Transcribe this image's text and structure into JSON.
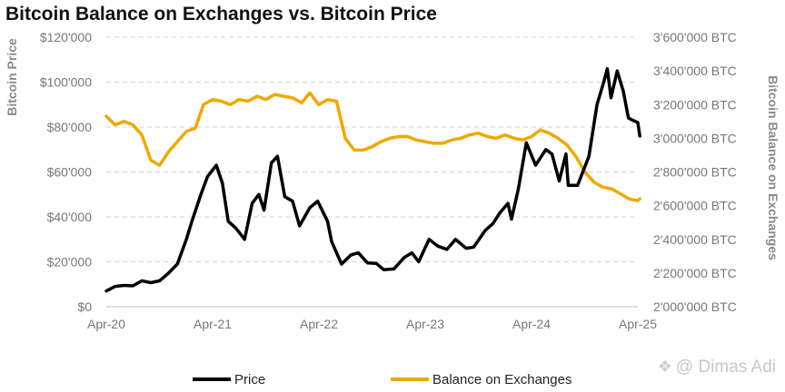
{
  "chart_data": {
    "type": "line",
    "title": "Bitcoin Balance on Exchanges vs. Bitcoin Price",
    "ylabel": "Bitcoin Price",
    "y2label": "Bitcoin Balance on Exchanges",
    "x_ticks": [
      "Apr-20",
      "Apr-21",
      "Apr-22",
      "Apr-23",
      "Apr-24",
      "Apr-25"
    ],
    "ylim": [
      0,
      120000
    ],
    "y_ticks": [
      "$0",
      "$20'000",
      "$40'000",
      "$60'000",
      "$80'000",
      "$100'000",
      "$120'000"
    ],
    "y2lim": [
      2000000,
      3600000
    ],
    "y2_ticks": [
      "2'000'000 BTC",
      "2'200'000 BTC",
      "2'400'000 BTC",
      "2'600'000 BTC",
      "2'800'000 BTC",
      "3'000'000 BTC",
      "3'200'000 BTC",
      "3'400'000 BTC",
      "3'600'000 BTC"
    ],
    "grid": true,
    "legend_position": "bottom",
    "series": [
      {
        "name": "Price",
        "axis": "left",
        "color": "#000000",
        "points": [
          [
            "2020-04-01",
            7000
          ],
          [
            "2020-05-01",
            9000
          ],
          [
            "2020-06-01",
            9500
          ],
          [
            "2020-07-01",
            9300
          ],
          [
            "2020-08-01",
            11500
          ],
          [
            "2020-09-01",
            10700
          ],
          [
            "2020-10-01",
            11500
          ],
          [
            "2020-11-01",
            15000
          ],
          [
            "2020-12-01",
            19000
          ],
          [
            "2021-01-01",
            30000
          ],
          [
            "2021-01-20",
            38000
          ],
          [
            "2021-02-20",
            50000
          ],
          [
            "2021-03-15",
            58000
          ],
          [
            "2021-04-14",
            63000
          ],
          [
            "2021-05-05",
            55000
          ],
          [
            "2021-05-25",
            38000
          ],
          [
            "2021-06-20",
            35000
          ],
          [
            "2021-07-20",
            30000
          ],
          [
            "2021-08-15",
            46000
          ],
          [
            "2021-09-07",
            50000
          ],
          [
            "2021-09-25",
            43000
          ],
          [
            "2021-10-20",
            64000
          ],
          [
            "2021-11-10",
            67000
          ],
          [
            "2021-12-05",
            49000
          ],
          [
            "2022-01-01",
            47000
          ],
          [
            "2022-01-25",
            36000
          ],
          [
            "2022-03-01",
            44000
          ],
          [
            "2022-03-28",
            47000
          ],
          [
            "2022-05-01",
            38000
          ],
          [
            "2022-05-15",
            29000
          ],
          [
            "2022-06-18",
            19000
          ],
          [
            "2022-07-20",
            23000
          ],
          [
            "2022-08-15",
            24000
          ],
          [
            "2022-09-15",
            19500
          ],
          [
            "2022-10-15",
            19300
          ],
          [
            "2022-11-10",
            16500
          ],
          [
            "2022-12-15",
            16800
          ],
          [
            "2023-01-20",
            22000
          ],
          [
            "2023-02-15",
            24000
          ],
          [
            "2023-03-10",
            20000
          ],
          [
            "2023-04-15",
            30000
          ],
          [
            "2023-05-15",
            27000
          ],
          [
            "2023-06-15",
            25500
          ],
          [
            "2023-07-15",
            30000
          ],
          [
            "2023-08-20",
            26000
          ],
          [
            "2023-09-15",
            26500
          ],
          [
            "2023-10-25",
            34000
          ],
          [
            "2023-11-20",
            37000
          ],
          [
            "2023-12-15",
            42000
          ],
          [
            "2024-01-11",
            46000
          ],
          [
            "2024-01-23",
            39000
          ],
          [
            "2024-02-15",
            52000
          ],
          [
            "2024-03-14",
            73000
          ],
          [
            "2024-04-15",
            63000
          ],
          [
            "2024-05-20",
            70000
          ],
          [
            "2024-06-10",
            68000
          ],
          [
            "2024-07-05",
            56000
          ],
          [
            "2024-07-28",
            68000
          ],
          [
            "2024-08-05",
            54000
          ],
          [
            "2024-09-06",
            54000
          ],
          [
            "2024-10-15",
            67000
          ],
          [
            "2024-11-12",
            90000
          ],
          [
            "2024-12-05",
            100000
          ],
          [
            "2024-12-17",
            106000
          ],
          [
            "2024-12-30",
            93000
          ],
          [
            "2025-01-20",
            105000
          ],
          [
            "2025-02-10",
            96000
          ],
          [
            "2025-02-28",
            84000
          ],
          [
            "2025-03-15",
            83000
          ],
          [
            "2025-04-01",
            82000
          ],
          [
            "2025-04-08",
            76000
          ]
        ]
      },
      {
        "name": "Balance on Exchanges",
        "axis": "right",
        "color": "#f0a800",
        "points": [
          [
            "2020-04-01",
            3130000
          ],
          [
            "2020-05-01",
            3080000
          ],
          [
            "2020-06-01",
            3100000
          ],
          [
            "2020-07-01",
            3080000
          ],
          [
            "2020-08-01",
            3020000
          ],
          [
            "2020-09-01",
            2870000
          ],
          [
            "2020-10-01",
            2840000
          ],
          [
            "2020-11-01",
            2920000
          ],
          [
            "2020-12-01",
            2980000
          ],
          [
            "2021-01-01",
            3040000
          ],
          [
            "2021-02-01",
            3060000
          ],
          [
            "2021-03-01",
            3200000
          ],
          [
            "2021-04-01",
            3230000
          ],
          [
            "2021-05-01",
            3220000
          ],
          [
            "2021-06-01",
            3200000
          ],
          [
            "2021-07-01",
            3230000
          ],
          [
            "2021-08-01",
            3220000
          ],
          [
            "2021-09-01",
            3250000
          ],
          [
            "2021-10-01",
            3230000
          ],
          [
            "2021-11-01",
            3260000
          ],
          [
            "2021-12-01",
            3250000
          ],
          [
            "2022-01-01",
            3240000
          ],
          [
            "2022-02-01",
            3210000
          ],
          [
            "2022-03-01",
            3270000
          ],
          [
            "2022-04-01",
            3200000
          ],
          [
            "2022-05-01",
            3230000
          ],
          [
            "2022-06-01",
            3220000
          ],
          [
            "2022-07-01",
            3000000
          ],
          [
            "2022-08-01",
            2930000
          ],
          [
            "2022-09-01",
            2930000
          ],
          [
            "2022-10-01",
            2950000
          ],
          [
            "2022-11-01",
            2980000
          ],
          [
            "2022-12-01",
            3000000
          ],
          [
            "2023-01-01",
            3010000
          ],
          [
            "2023-02-01",
            3010000
          ],
          [
            "2023-03-01",
            2990000
          ],
          [
            "2023-04-01",
            2980000
          ],
          [
            "2023-05-01",
            2970000
          ],
          [
            "2023-06-01",
            2970000
          ],
          [
            "2023-07-01",
            2990000
          ],
          [
            "2023-08-01",
            3000000
          ],
          [
            "2023-09-01",
            3020000
          ],
          [
            "2023-10-01",
            3030000
          ],
          [
            "2023-11-01",
            3010000
          ],
          [
            "2023-12-01",
            3000000
          ],
          [
            "2024-01-01",
            3020000
          ],
          [
            "2024-02-01",
            3000000
          ],
          [
            "2024-03-01",
            2990000
          ],
          [
            "2024-04-01",
            3010000
          ],
          [
            "2024-05-01",
            3050000
          ],
          [
            "2024-06-01",
            3030000
          ],
          [
            "2024-07-01",
            3000000
          ],
          [
            "2024-08-01",
            2960000
          ],
          [
            "2024-09-01",
            2890000
          ],
          [
            "2024-10-01",
            2800000
          ],
          [
            "2024-11-01",
            2740000
          ],
          [
            "2024-12-01",
            2710000
          ],
          [
            "2025-01-01",
            2700000
          ],
          [
            "2025-02-01",
            2670000
          ],
          [
            "2025-03-01",
            2640000
          ],
          [
            "2025-04-01",
            2630000
          ],
          [
            "2025-04-08",
            2640000
          ]
        ]
      }
    ]
  },
  "watermark": {
    "text": "@ Dimas Adi",
    "icon": "watermark-logo-icon"
  }
}
